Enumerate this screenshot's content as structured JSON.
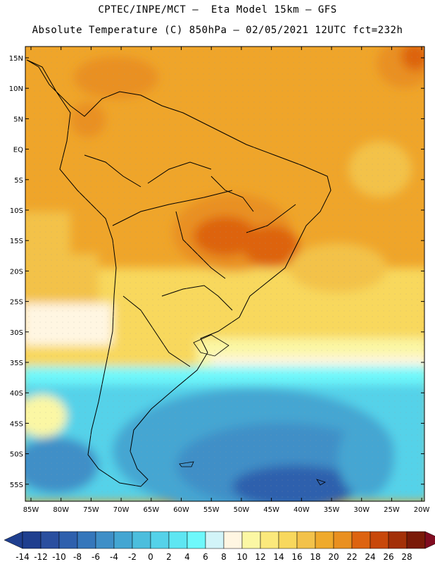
{
  "title_line1": "CPTEC/INPE/MCT –  Eta Model 15km – GFS",
  "title_line2": "Absolute Temperature (C) 850hPa – 02/05/2021 12UTC fct=232h",
  "lat_labels": [
    "15N",
    "10N",
    "5N",
    "EQ",
    "5S",
    "10S",
    "15S",
    "20S",
    "25S",
    "30S",
    "35S",
    "40S",
    "45S",
    "50S",
    "55S"
  ],
  "lon_labels": [
    "85W",
    "80W",
    "75W",
    "70W",
    "65W",
    "60W",
    "55W",
    "50W",
    "45W",
    "40W",
    "35W",
    "30W",
    "25W",
    "20W"
  ],
  "legend": {
    "labels": [
      "-14",
      "-12",
      "-10",
      "-8",
      "-6",
      "-4",
      "-2",
      "0",
      "2",
      "4",
      "6",
      "8",
      "10",
      "12",
      "14",
      "16",
      "18",
      "20",
      "22",
      "24",
      "26",
      "28"
    ],
    "colors": [
      "#1f3f8f",
      "#2a4f9f",
      "#2e60ad",
      "#3577bb",
      "#3f8fc7",
      "#44a6d2",
      "#4cbedd",
      "#55d2e9",
      "#5ee6f2",
      "#6ef8fb",
      "#d2f4f8",
      "#fff6e2",
      "#fbf7a4",
      "#fbe97c",
      "#f8d85d",
      "#f3c24a",
      "#efaa2c",
      "#e99020",
      "#dd6410",
      "#c8480a",
      "#a33008",
      "#7a1a08"
    ]
  },
  "colors": {
    "warm": "#f2a81c",
    "hot": "#e2701a",
    "cold": "#3a86c6",
    "map_background": "#efa52a"
  }
}
